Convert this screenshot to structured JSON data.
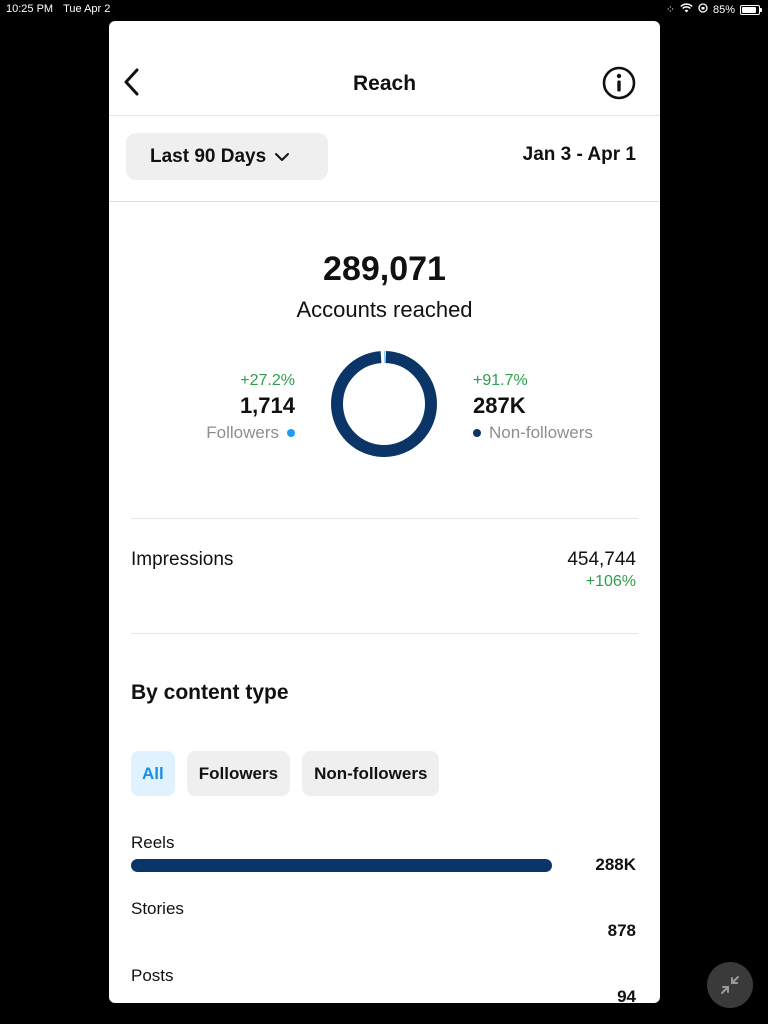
{
  "status_bar": {
    "time": "10:25 PM",
    "date": "Tue Apr 2",
    "battery": "85%",
    "battery_level": 0.85
  },
  "nav": {
    "title": "Reach",
    "back_icon": "chevron-left-icon",
    "info_icon": "info-circle-icon"
  },
  "filter": {
    "range_label": "Last 90 Days",
    "date_range": "Jan 3 - Apr 1"
  },
  "summary": {
    "total": "289,071",
    "total_label": "Accounts reached",
    "followers": {
      "change": "+27.2%",
      "count": "1,714",
      "label": "Followers",
      "color": "#1d9bf0"
    },
    "non_followers": {
      "change": "+91.7%",
      "count": "287K",
      "label": "Non-followers",
      "color": "#0a3566"
    }
  },
  "impressions": {
    "label": "Impressions",
    "value": "454,744",
    "change": "+106%"
  },
  "content_type": {
    "title": "By content type",
    "chips": [
      {
        "label": "All",
        "active": true
      },
      {
        "label": "Followers",
        "active": false
      },
      {
        "label": "Non-followers",
        "active": false
      }
    ],
    "rows": [
      {
        "label": "Reels",
        "value": "288K",
        "fraction": 1.0
      },
      {
        "label": "Stories",
        "value": "878",
        "fraction": 0.003
      },
      {
        "label": "Posts",
        "value": "94",
        "fraction": 0.0003
      }
    ]
  },
  "colors": {
    "positive": "#2e9e4a",
    "accent": "#1a8fe3",
    "bar": "#0a3566"
  },
  "floating_button_icon": "minimize-arrows-icon"
}
